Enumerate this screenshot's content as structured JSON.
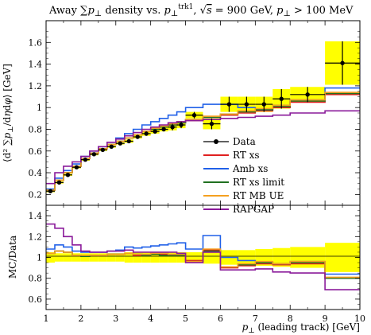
{
  "title": "Away ∑p⊥ density vs. p⊥trk1, √s = 900 GeV, p⊥ > 100 MeV",
  "colors": {
    "data": "#000000",
    "rt_xs": "#e02020",
    "amb_xs": "#2060e8",
    "rt_xs_limit": "#207020",
    "rt_mb_ue": "#f5a020",
    "rapgap": "#8a1a9a",
    "band": "#ffff00"
  },
  "chart_data": [
    {
      "type": "line",
      "title": "Away ∑p⊥ density vs. p⊥trk1, √s = 900 GeV, p⊥ > 100 MeV",
      "xlabel": "",
      "ylabel": "⟨d²∑p⊥/dηdφ⟩ [GeV]",
      "xlim": [
        1,
        10
      ],
      "ylim": [
        0.1,
        1.8
      ],
      "xticks": [
        "1",
        "2",
        "3",
        "4",
        "5",
        "6",
        "7",
        "8",
        "9",
        "10"
      ],
      "yticks": [
        "0.2",
        "0.4",
        "0.6",
        "0.8",
        "1",
        "1.2",
        "1.4",
        "1.6"
      ],
      "legend_position": "center-right",
      "bin_edges": [
        1.0,
        1.25,
        1.5,
        1.75,
        2.0,
        2.25,
        2.5,
        2.75,
        3.0,
        3.25,
        3.5,
        3.75,
        4.0,
        4.25,
        4.5,
        4.75,
        5.0,
        5.5,
        6.0,
        6.5,
        7.0,
        7.5,
        8.0,
        9.0,
        10.0
      ],
      "data_points": {
        "name": "Data",
        "x": [
          1.125,
          1.375,
          1.625,
          1.875,
          2.125,
          2.375,
          2.625,
          2.875,
          3.125,
          3.375,
          3.625,
          3.875,
          4.125,
          4.375,
          4.625,
          4.875,
          5.25,
          5.75,
          6.25,
          6.75,
          7.25,
          7.75,
          8.5,
          9.5
        ],
        "y": [
          0.23,
          0.31,
          0.38,
          0.45,
          0.52,
          0.57,
          0.61,
          0.64,
          0.67,
          0.69,
          0.73,
          0.76,
          0.78,
          0.8,
          0.82,
          0.84,
          0.93,
          0.85,
          1.03,
          1.03,
          1.03,
          1.08,
          1.12,
          1.41
        ],
        "yerr": [
          0.01,
          0.01,
          0.01,
          0.01,
          0.01,
          0.01,
          0.01,
          0.01,
          0.01,
          0.015,
          0.015,
          0.02,
          0.02,
          0.02,
          0.03,
          0.03,
          0.03,
          0.05,
          0.07,
          0.07,
          0.07,
          0.09,
          0.07,
          0.2
        ]
      },
      "series": [
        {
          "name": "RT xs",
          "values": [
            0.24,
            0.33,
            0.4,
            0.46,
            0.53,
            0.58,
            0.62,
            0.66,
            0.69,
            0.72,
            0.75,
            0.78,
            0.8,
            0.82,
            0.84,
            0.86,
            0.88,
            0.91,
            0.93,
            0.95,
            0.97,
            1.0,
            1.05,
            1.12
          ]
        },
        {
          "name": "Amb xs",
          "values": [
            0.25,
            0.35,
            0.42,
            0.48,
            0.55,
            0.6,
            0.64,
            0.68,
            0.72,
            0.76,
            0.8,
            0.84,
            0.87,
            0.9,
            0.93,
            0.96,
            1.0,
            1.03,
            1.03,
            1.0,
            0.98,
            1.02,
            1.07,
            1.18
          ]
        },
        {
          "name": "RT xs limit",
          "values": [
            0.24,
            0.33,
            0.4,
            0.46,
            0.53,
            0.58,
            0.62,
            0.66,
            0.69,
            0.72,
            0.75,
            0.78,
            0.8,
            0.82,
            0.84,
            0.86,
            0.89,
            0.91,
            0.94,
            0.96,
            0.98,
            1.01,
            1.06,
            1.13
          ]
        },
        {
          "name": "RT MB UE",
          "values": [
            0.24,
            0.33,
            0.4,
            0.46,
            0.53,
            0.58,
            0.62,
            0.66,
            0.69,
            0.72,
            0.75,
            0.78,
            0.81,
            0.83,
            0.85,
            0.87,
            0.89,
            0.92,
            0.94,
            0.97,
            0.99,
            1.02,
            1.07,
            1.14
          ]
        },
        {
          "name": "RAPGAP",
          "values": [
            0.3,
            0.4,
            0.46,
            0.5,
            0.55,
            0.6,
            0.64,
            0.68,
            0.71,
            0.74,
            0.77,
            0.8,
            0.82,
            0.84,
            0.86,
            0.87,
            0.88,
            0.89,
            0.9,
            0.91,
            0.92,
            0.93,
            0.95,
            0.97
          ]
        }
      ]
    },
    {
      "type": "line",
      "title": "",
      "xlabel": "p⊥ (leading track) [GeV]",
      "ylabel": "MC/Data",
      "xlim": [
        1,
        10
      ],
      "ylim": [
        0.5,
        1.5
      ],
      "xticks": [
        "1",
        "2",
        "3",
        "4",
        "5",
        "6",
        "7",
        "8",
        "9",
        "10"
      ],
      "yticks": [
        "0.6",
        "0.8",
        "1",
        "1.2",
        "1.4"
      ],
      "bin_edges": [
        1.0,
        1.25,
        1.5,
        1.75,
        2.0,
        2.25,
        2.5,
        2.75,
        3.0,
        3.25,
        3.5,
        3.75,
        4.0,
        4.25,
        4.5,
        4.75,
        5.0,
        5.5,
        6.0,
        6.5,
        7.0,
        7.5,
        8.0,
        9.0,
        10.0
      ],
      "data_uncertainty_band": [
        0.05,
        0.04,
        0.04,
        0.04,
        0.04,
        0.04,
        0.04,
        0.04,
        0.04,
        0.05,
        0.05,
        0.05,
        0.05,
        0.05,
        0.05,
        0.05,
        0.05,
        0.06,
        0.07,
        0.07,
        0.08,
        0.09,
        0.1,
        0.14
      ],
      "series": [
        {
          "name": "RT xs",
          "values": [
            1.04,
            1.06,
            1.05,
            1.02,
            1.01,
            1.02,
            1.02,
            1.03,
            1.03,
            1.04,
            1.02,
            1.02,
            1.03,
            1.03,
            1.02,
            1.02,
            0.97,
            1.07,
            0.9,
            0.92,
            0.94,
            0.93,
            0.94,
            0.8
          ]
        },
        {
          "name": "Amb xs",
          "values": [
            1.08,
            1.12,
            1.1,
            1.06,
            1.05,
            1.05,
            1.05,
            1.06,
            1.07,
            1.1,
            1.09,
            1.1,
            1.11,
            1.12,
            1.13,
            1.14,
            1.08,
            1.21,
            1.0,
            0.97,
            0.95,
            0.94,
            0.96,
            0.84
          ]
        },
        {
          "name": "RT xs limit",
          "values": [
            1.04,
            1.06,
            1.05,
            1.02,
            1.01,
            1.02,
            1.02,
            1.03,
            1.03,
            1.04,
            1.03,
            1.02,
            1.03,
            1.02,
            1.02,
            1.02,
            0.96,
            1.06,
            0.91,
            0.93,
            0.95,
            0.94,
            0.95,
            0.8
          ]
        },
        {
          "name": "RT MB UE",
          "values": [
            1.04,
            1.06,
            1.05,
            1.02,
            1.02,
            1.02,
            1.02,
            1.03,
            1.03,
            1.04,
            1.03,
            1.03,
            1.04,
            1.04,
            1.03,
            1.03,
            0.96,
            1.08,
            0.91,
            0.94,
            0.96,
            0.94,
            0.96,
            0.81
          ]
        },
        {
          "name": "RAPGAP",
          "values": [
            1.32,
            1.28,
            1.2,
            1.12,
            1.06,
            1.05,
            1.05,
            1.06,
            1.06,
            1.07,
            1.05,
            1.05,
            1.05,
            1.05,
            1.05,
            1.04,
            0.95,
            1.05,
            0.88,
            0.88,
            0.89,
            0.86,
            0.85,
            0.69
          ]
        }
      ]
    }
  ]
}
